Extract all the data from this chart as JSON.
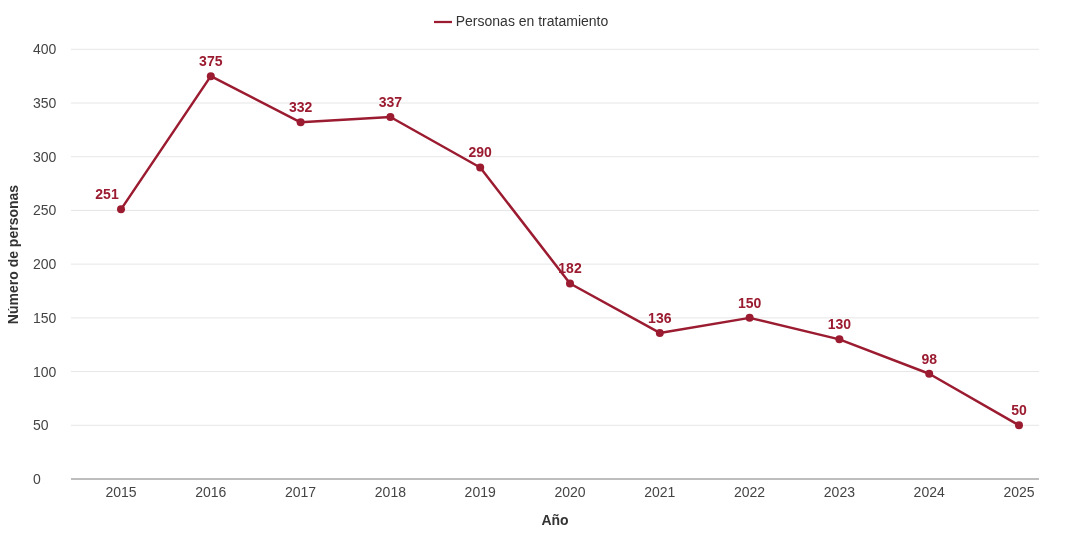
{
  "chart_data": {
    "type": "line",
    "xlabel": "Año",
    "ylabel": "Número de personas",
    "categories": [
      "2015",
      "2016",
      "2017",
      "2018",
      "2019",
      "2020",
      "2021",
      "2022",
      "2023",
      "2024",
      "2025"
    ],
    "series": [
      {
        "name": "Personas en tratamiento",
        "color": "#9b1b30",
        "values": [
          251,
          375,
          332,
          337,
          290,
          182,
          136,
          150,
          130,
          98,
          50
        ]
      }
    ],
    "ylim": [
      0,
      400
    ],
    "yticks": [
      0,
      50,
      100,
      150,
      200,
      250,
      300,
      350,
      400
    ],
    "grid": "y",
    "legend": "top",
    "marker": "circle",
    "line_style": "solid",
    "data_labels": true
  }
}
